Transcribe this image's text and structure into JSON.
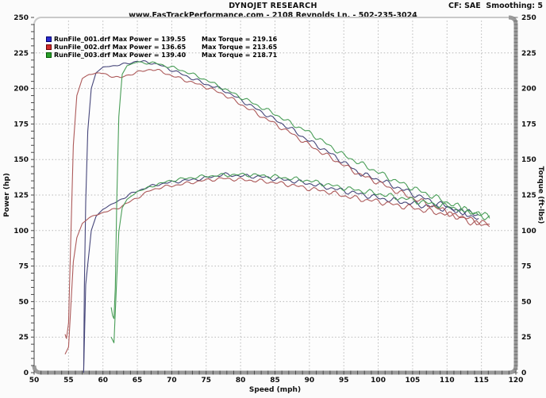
{
  "header": {
    "title": "DYNOJET RESEARCH",
    "subtitle": "www.FasTrackPerformance.com - 2108 Reynolds Ln. - 502-235-3024",
    "correction": "CF: SAE  Smoothing: 5"
  },
  "legend": {
    "rows": [
      {
        "swatch_fill": "#2a2ad0",
        "swatch_border": "#00006a",
        "power_label": "RunFile_001.drf Max Power = 139.55",
        "torque_label": "Max Torque = 219.16",
        "max_power": 139.55,
        "max_torque": 219.16
      },
      {
        "swatch_fill": "#d02a2a",
        "swatch_border": "#6a0000",
        "power_label": "RunFile_002.drf Max Power = 136.65",
        "torque_label": "Max Torque = 213.65",
        "max_power": 136.65,
        "max_torque": 213.65
      },
      {
        "swatch_fill": "#2aa02a",
        "swatch_border": "#005a00",
        "power_label": "RunFile_003.drf Max Power = 139.40",
        "torque_label": "Max Torque = 218.71",
        "max_power": 139.4,
        "max_torque": 218.71
      }
    ]
  },
  "chart_data": {
    "type": "line",
    "title": "DYNOJET RESEARCH",
    "xlabel": "Speed (mph)",
    "ylabel_left": "Power (hp)",
    "ylabel_right": "Torque (ft-lbs)",
    "xlim": [
      50,
      120
    ],
    "ylim": [
      0,
      250
    ],
    "x_major_ticks": [
      50,
      55,
      60,
      65,
      70,
      75,
      80,
      85,
      90,
      95,
      100,
      105,
      110,
      115,
      120
    ],
    "x_minor_step": 1,
    "y_major_ticks": [
      0,
      25,
      50,
      75,
      100,
      125,
      150,
      175,
      200,
      225,
      250
    ],
    "y_minor_step_left": 5,
    "y_minor_step_right": 2.5,
    "grid": true,
    "grid_color": "#b8b8b8",
    "legend_position": "top-left",
    "series": [
      {
        "name": "RunFile_001 Torque",
        "unit": "ft-lbs",
        "color": "#46467a",
        "points": [
          [
            57.2,
            0
          ],
          [
            57.3,
            60
          ],
          [
            57.5,
            120
          ],
          [
            57.8,
            170
          ],
          [
            58.3,
            200
          ],
          [
            59,
            211
          ],
          [
            60,
            215
          ],
          [
            61.5,
            216
          ],
          [
            63,
            217
          ],
          [
            65,
            219.2
          ],
          [
            66.5,
            218.5
          ],
          [
            67.5,
            217.5
          ],
          [
            68.5,
            216
          ],
          [
            70,
            213
          ],
          [
            71,
            211
          ],
          [
            72.5,
            208
          ],
          [
            75,
            203
          ],
          [
            77.5,
            199
          ],
          [
            80,
            192
          ],
          [
            82.5,
            185
          ],
          [
            85,
            178
          ],
          [
            87.5,
            171
          ],
          [
            90,
            163
          ],
          [
            92.5,
            156
          ],
          [
            95,
            148
          ],
          [
            96.5,
            143
          ],
          [
            97.5,
            140
          ],
          [
            100,
            136
          ],
          [
            102.5,
            131
          ],
          [
            105,
            126
          ],
          [
            107.5,
            121
          ],
          [
            110,
            117
          ],
          [
            112,
            113
          ],
          [
            113.2,
            111
          ],
          [
            114.6,
            108.5
          ]
        ]
      },
      {
        "name": "RunFile_001 Power",
        "unit": "hp",
        "color": "#46467a",
        "points": [
          [
            57.2,
            0
          ],
          [
            57.5,
            62
          ],
          [
            58.3,
            100
          ],
          [
            59,
            110
          ],
          [
            60,
            115
          ],
          [
            61.5,
            119
          ],
          [
            63,
            123
          ],
          [
            65,
            128
          ],
          [
            67.5,
            132
          ],
          [
            70,
            134
          ],
          [
            72.5,
            135.5
          ],
          [
            75,
            137
          ],
          [
            77.5,
            139.5
          ],
          [
            80,
            138.5
          ],
          [
            82.5,
            138
          ],
          [
            85,
            136.5
          ],
          [
            87.5,
            135
          ],
          [
            90,
            133
          ],
          [
            92.5,
            130.5
          ],
          [
            95,
            128
          ],
          [
            97.5,
            125.5
          ],
          [
            100,
            123
          ],
          [
            102.5,
            121
          ],
          [
            105,
            119
          ],
          [
            107.5,
            117
          ],
          [
            110,
            115.5
          ],
          [
            112,
            113.5
          ],
          [
            113.2,
            112.5
          ],
          [
            114.6,
            111
          ]
        ]
      },
      {
        "name": "RunFile_002 Torque",
        "unit": "ft-lbs",
        "color": "#ad5a5a",
        "points": [
          [
            54.5,
            27
          ],
          [
            54.7,
            24
          ],
          [
            55,
            35
          ],
          [
            55.3,
            90
          ],
          [
            55.7,
            160
          ],
          [
            56.2,
            195
          ],
          [
            57,
            207
          ],
          [
            58,
            210
          ],
          [
            59.5,
            211
          ],
          [
            61,
            209
          ],
          [
            62.5,
            207.5
          ],
          [
            64,
            210
          ],
          [
            65.5,
            212
          ],
          [
            67,
            213.6
          ],
          [
            68.5,
            212
          ],
          [
            70,
            209
          ],
          [
            72.5,
            205
          ],
          [
            75,
            201
          ],
          [
            77.5,
            196
          ],
          [
            80,
            189
          ],
          [
            82.5,
            182
          ],
          [
            85,
            175
          ],
          [
            87.5,
            168
          ],
          [
            90,
            160
          ],
          [
            92.5,
            153
          ],
          [
            95,
            146
          ],
          [
            97.5,
            139
          ],
          [
            100,
            134
          ],
          [
            102.5,
            128
          ],
          [
            105,
            123
          ],
          [
            107.5,
            118
          ],
          [
            110,
            113
          ],
          [
            112.5,
            108
          ],
          [
            114,
            105
          ],
          [
            115.5,
            104
          ],
          [
            116.2,
            104.5
          ]
        ]
      },
      {
        "name": "RunFile_002 Power",
        "unit": "hp",
        "color": "#ad5a5a",
        "points": [
          [
            54.5,
            13
          ],
          [
            55,
            18
          ],
          [
            55.3,
            44
          ],
          [
            55.7,
            78
          ],
          [
            56.2,
            95
          ],
          [
            57,
            105
          ],
          [
            58,
            109
          ],
          [
            59.5,
            112
          ],
          [
            61,
            114
          ],
          [
            62.5,
            116.5
          ],
          [
            64,
            120.5
          ],
          [
            65.5,
            124.5
          ],
          [
            67,
            128.5
          ],
          [
            68.5,
            130.5
          ],
          [
            70,
            131.5
          ],
          [
            72.5,
            133.5
          ],
          [
            75,
            135.5
          ],
          [
            77.5,
            136.6
          ],
          [
            80,
            135.8
          ],
          [
            82.5,
            135
          ],
          [
            85,
            133.8
          ],
          [
            87.5,
            132
          ],
          [
            90,
            129.5
          ],
          [
            92.5,
            127.5
          ],
          [
            95,
            124.5
          ],
          [
            97.5,
            122
          ],
          [
            100,
            120.5
          ],
          [
            102.5,
            118
          ],
          [
            105,
            116
          ],
          [
            107.5,
            113.5
          ],
          [
            110,
            111.5
          ],
          [
            112.5,
            109
          ],
          [
            114,
            107
          ],
          [
            115.5,
            105
          ],
          [
            116.2,
            104.5
          ]
        ]
      },
      {
        "name": "RunFile_003 Torque",
        "unit": "ft-lbs",
        "color": "#4a9e58",
        "points": [
          [
            61.2,
            46
          ],
          [
            61.4,
            40
          ],
          [
            61.6,
            38
          ],
          [
            61.8,
            60
          ],
          [
            62,
            120
          ],
          [
            62.3,
            180
          ],
          [
            62.8,
            210
          ],
          [
            63.5,
            216
          ],
          [
            65,
            218.7
          ],
          [
            66,
            218
          ],
          [
            67.5,
            218
          ],
          [
            69,
            216
          ],
          [
            70,
            215
          ],
          [
            72.5,
            211
          ],
          [
            75,
            206
          ],
          [
            77.5,
            200
          ],
          [
            80,
            194
          ],
          [
            82.5,
            188
          ],
          [
            85,
            182
          ],
          [
            87.5,
            175
          ],
          [
            90,
            169
          ],
          [
            92.5,
            161
          ],
          [
            95,
            153
          ],
          [
            97.5,
            147
          ],
          [
            100,
            141
          ],
          [
            102.5,
            135
          ],
          [
            105,
            130
          ],
          [
            107.5,
            125
          ],
          [
            110,
            120
          ],
          [
            112.5,
            115
          ],
          [
            114,
            112
          ],
          [
            115.5,
            110
          ],
          [
            116.2,
            109
          ]
        ]
      },
      {
        "name": "RunFile_003 Power",
        "unit": "hp",
        "color": "#4a9e58",
        "points": [
          [
            61.2,
            25
          ],
          [
            61.6,
            21
          ],
          [
            62,
            66
          ],
          [
            62.3,
            99
          ],
          [
            62.8,
            116
          ],
          [
            63.5,
            122
          ],
          [
            65,
            127.5
          ],
          [
            66,
            129
          ],
          [
            67.5,
            132
          ],
          [
            69,
            134
          ],
          [
            70,
            135.3
          ],
          [
            72.5,
            137
          ],
          [
            75,
            138.3
          ],
          [
            77.5,
            139
          ],
          [
            80,
            139.4
          ],
          [
            82.5,
            139
          ],
          [
            85,
            138
          ],
          [
            87.5,
            136.5
          ],
          [
            90,
            135
          ],
          [
            92.5,
            132.5
          ],
          [
            95,
            130
          ],
          [
            97.5,
            128
          ],
          [
            100,
            126
          ],
          [
            102.5,
            123.5
          ],
          [
            105,
            121.5
          ],
          [
            107.5,
            119
          ],
          [
            110,
            117
          ],
          [
            112.5,
            114.5
          ],
          [
            114,
            112.5
          ],
          [
            115.5,
            110.5
          ],
          [
            116.2,
            110
          ]
        ]
      }
    ]
  }
}
